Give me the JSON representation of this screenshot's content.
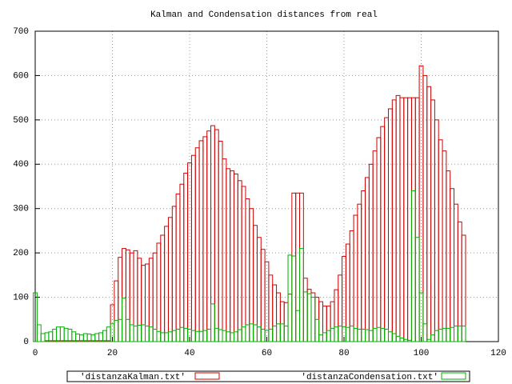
{
  "chart_data": {
    "type": "bar",
    "title": "Kalman and Condensation distances from real",
    "x": [
      0,
      1,
      2,
      3,
      4,
      5,
      6,
      7,
      8,
      9,
      10,
      11,
      12,
      13,
      14,
      15,
      16,
      17,
      18,
      19,
      20,
      21,
      22,
      23,
      24,
      25,
      26,
      27,
      28,
      29,
      30,
      31,
      32,
      33,
      34,
      35,
      36,
      37,
      38,
      39,
      40,
      41,
      42,
      43,
      44,
      45,
      46,
      47,
      48,
      49,
      50,
      51,
      52,
      53,
      54,
      55,
      56,
      57,
      58,
      59,
      60,
      61,
      62,
      63,
      64,
      65,
      66,
      67,
      68,
      69,
      70,
      71,
      72,
      73,
      74,
      75,
      76,
      77,
      78,
      79,
      80,
      81,
      82,
      83,
      84,
      85,
      86,
      87,
      88,
      89,
      90,
      91,
      92,
      93,
      94,
      95,
      96,
      97,
      98,
      99,
      100,
      101,
      102,
      103,
      104,
      105,
      106,
      107,
      108,
      109,
      110,
      111
    ],
    "series": [
      {
        "name": "'distanzaKalman.txt'",
        "color": "#d00000",
        "values": [
          0,
          0,
          0,
          2,
          2,
          2,
          2,
          2,
          2,
          2,
          2,
          2,
          2,
          2,
          2,
          2,
          2,
          2,
          2,
          2,
          83,
          137,
          190,
          210,
          207,
          200,
          205,
          188,
          172,
          175,
          188,
          200,
          222,
          240,
          260,
          280,
          305,
          333,
          355,
          380,
          403,
          420,
          437,
          453,
          462,
          475,
          487,
          478,
          452,
          412,
          390,
          385,
          378,
          363,
          350,
          322,
          300,
          262,
          235,
          208,
          180,
          150,
          128,
          110,
          90,
          88,
          107,
          335,
          335,
          335,
          143,
          118,
          110,
          100,
          90,
          80,
          80,
          90,
          117,
          150,
          192,
          220,
          250,
          285,
          310,
          340,
          370,
          400,
          430,
          460,
          485,
          505,
          525,
          545,
          555,
          550,
          550,
          550,
          550,
          550,
          622,
          600,
          575,
          545,
          500,
          455,
          430,
          385,
          345,
          310,
          270,
          240
        ]
      },
      {
        "name": "'distanzaCondensation.txt'",
        "color": "#00b000",
        "values": [
          110,
          38,
          18,
          20,
          22,
          28,
          33,
          33,
          30,
          28,
          22,
          17,
          15,
          18,
          17,
          15,
          18,
          20,
          25,
          33,
          40,
          48,
          50,
          98,
          50,
          38,
          35,
          37,
          38,
          35,
          33,
          28,
          23,
          20,
          20,
          22,
          25,
          28,
          32,
          30,
          28,
          25,
          23,
          23,
          25,
          28,
          85,
          30,
          27,
          25,
          22,
          20,
          22,
          27,
          33,
          38,
          40,
          38,
          33,
          28,
          25,
          28,
          35,
          40,
          40,
          35,
          195,
          193,
          70,
          210,
          112,
          108,
          100,
          50,
          15,
          20,
          25,
          30,
          33,
          35,
          33,
          32,
          35,
          30,
          28,
          28,
          27,
          25,
          30,
          32,
          30,
          28,
          22,
          18,
          12,
          8,
          5,
          3,
          340,
          235,
          110,
          40,
          5,
          15,
          25,
          28,
          30,
          30,
          32,
          35,
          35,
          35
        ]
      }
    ],
    "xlim": [
      0,
      120
    ],
    "xticks": [
      0,
      20,
      40,
      60,
      80,
      100,
      120
    ],
    "ylim": [
      0,
      700
    ],
    "yticks": [
      0,
      100,
      200,
      300,
      400,
      500,
      600,
      700
    ],
    "grid": true,
    "legend": "bottom"
  }
}
